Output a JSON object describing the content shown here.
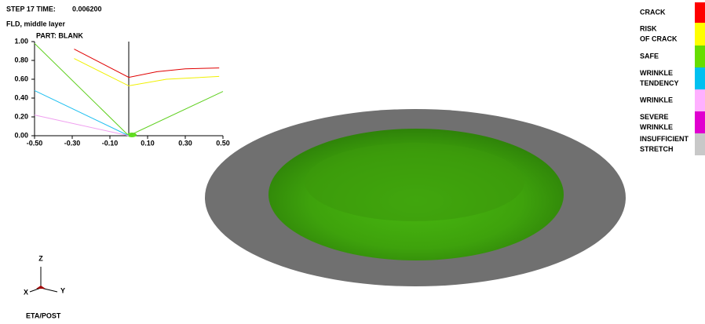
{
  "header": {
    "step": "STEP 17   TIME:",
    "time": "0.006200",
    "subtitle": "FLD, middle layer"
  },
  "chart_data": {
    "type": "line",
    "title": "PART: BLANK",
    "xlim": [
      -0.5,
      0.5
    ],
    "ylim": [
      0,
      1
    ],
    "xticks": [
      {
        "value": -0.5,
        "label": "-0.50"
      },
      {
        "value": -0.3,
        "label": "-0.30"
      },
      {
        "value": -0.1,
        "label": "-0.10"
      },
      {
        "value": 0.1,
        "label": "0.10"
      },
      {
        "value": 0.3,
        "label": "0.30"
      },
      {
        "value": 0.5,
        "label": "0.50"
      }
    ],
    "yticks": [
      {
        "value": 0,
        "label": "0.00"
      },
      {
        "value": 0.2,
        "label": "0.20"
      },
      {
        "value": 0.4,
        "label": "0.40"
      },
      {
        "value": 0.6,
        "label": "0.60"
      },
      {
        "value": 0.8,
        "label": "0.80"
      },
      {
        "value": 1,
        "label": "1.00"
      }
    ],
    "series": [
      {
        "color": "#e00000",
        "x": [
          -0.29,
          0.0,
          0.15,
          0.3,
          0.48
        ],
        "values": [
          0.92,
          0.62,
          0.68,
          0.71,
          0.72
        ]
      },
      {
        "color": "#f0f000",
        "x": [
          -0.29,
          0.0,
          0.2,
          0.48
        ],
        "values": [
          0.82,
          0.53,
          0.6,
          0.63
        ]
      },
      {
        "color": "#60d020",
        "x": [
          -0.5,
          0.0,
          0.5
        ],
        "values": [
          0.98,
          0.0,
          0.47
        ]
      },
      {
        "color": "#20c0f0",
        "x": [
          -0.5,
          0.0
        ],
        "values": [
          0.48,
          0.0
        ]
      },
      {
        "color": "#f0a0f0",
        "x": [
          -0.5,
          0.0
        ],
        "values": [
          0.22,
          0.0
        ]
      }
    ]
  },
  "legend": [
    {
      "lines": [
        "CRACK"
      ],
      "color": "#ff0000"
    },
    {
      "lines": [
        "RISK",
        "OF CRACK"
      ],
      "color": "#ffff00"
    },
    {
      "lines": [
        "SAFE"
      ],
      "color": "#66dd00"
    },
    {
      "lines": [
        "WRINKLE",
        "TENDENCY"
      ],
      "color": "#00c0f0"
    },
    {
      "lines": [
        "WRINKLE"
      ],
      "color": "#ffb0ff"
    },
    {
      "lines": [
        "SEVERE",
        "WRINKLE"
      ],
      "color": "#e000d0"
    },
    {
      "lines": [
        "INSUFFICIENT",
        "STRETCH"
      ],
      "color": "#c8c8c8"
    }
  ],
  "triad": {
    "z": "Z",
    "x": "X",
    "y": "Y"
  },
  "footer": "ETA/POST"
}
